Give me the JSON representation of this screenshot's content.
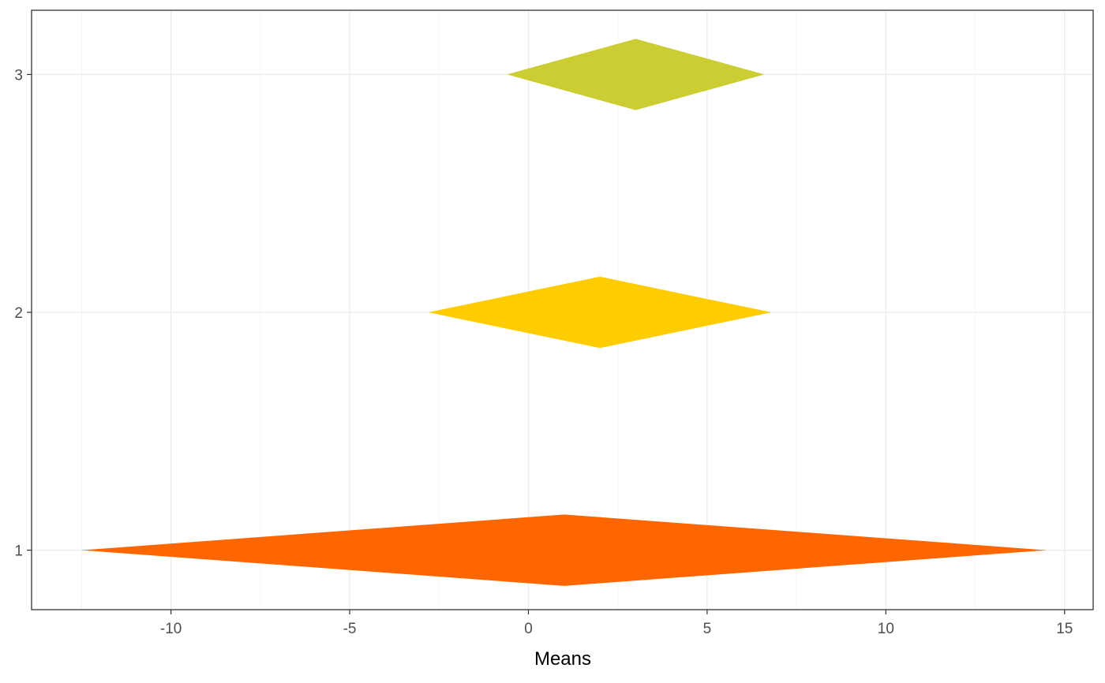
{
  "chart_data": {
    "type": "diamond",
    "xlabel": "Means",
    "ylabel": "",
    "xlim": [
      -13.9,
      15.8
    ],
    "ylim": [
      0.75,
      3.27
    ],
    "x_ticks": [
      -10,
      -5,
      0,
      5,
      10,
      15
    ],
    "x_tick_labels": [
      "-10",
      "-5",
      "0",
      "5",
      "10",
      "15"
    ],
    "y_ticks": [
      1,
      2,
      3
    ],
    "y_tick_labels": [
      "1",
      "2",
      "3"
    ],
    "grid": true,
    "series": [
      {
        "y": 1,
        "mean": 1,
        "lower": -12.5,
        "upper": 14.5,
        "color": "#FF6600"
      },
      {
        "y": 2,
        "mean": 2,
        "lower": -2.8,
        "upper": 6.8,
        "color": "#FFCC00"
      },
      {
        "y": 3,
        "mean": 3,
        "lower": -0.6,
        "upper": 6.6,
        "color": "#CCCC33"
      }
    ]
  }
}
